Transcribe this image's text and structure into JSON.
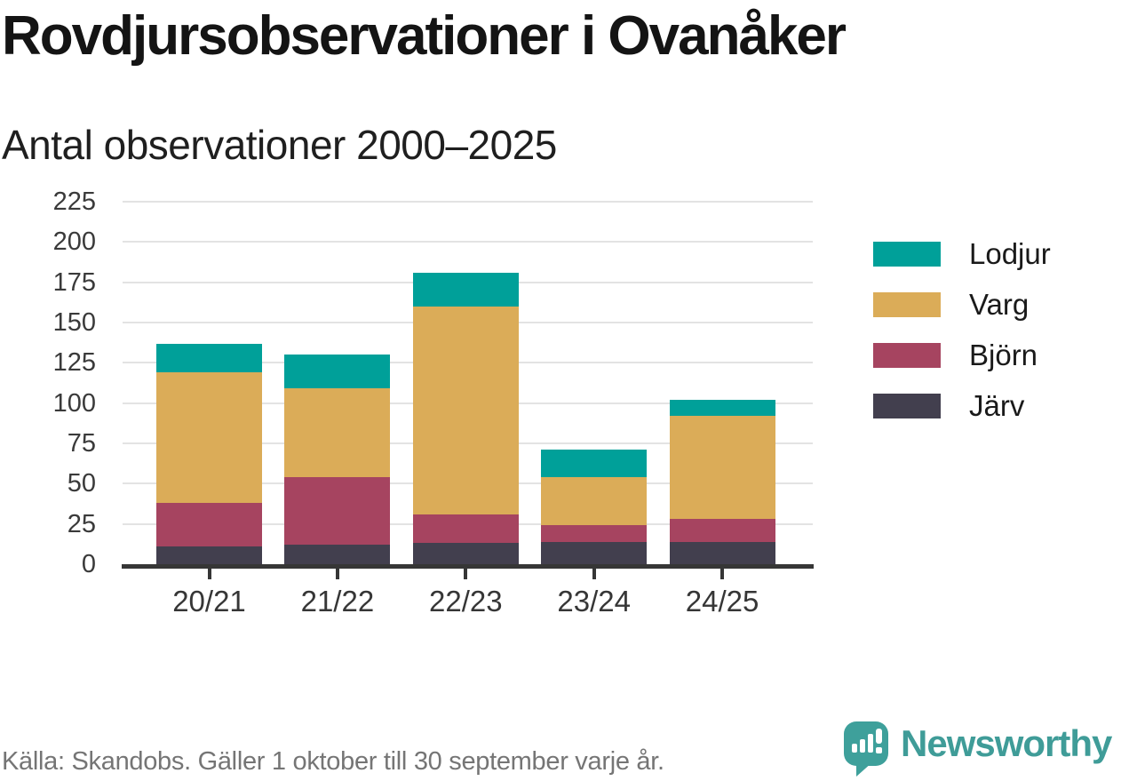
{
  "header": {
    "title": "Rovdjursobservationer i Ovanåker",
    "subtitle": "Antal observationer 2000–2025"
  },
  "chart_data": {
    "type": "bar",
    "stacked": true,
    "title": "Rovdjursobservationer i Ovanåker",
    "subtitle": "Antal observationer 2000–2025",
    "categories": [
      "20/21",
      "21/22",
      "22/23",
      "23/24",
      "24/25"
    ],
    "series": [
      {
        "name": "Järv",
        "color": "#423f4e",
        "values": [
          11,
          12,
          13,
          14,
          14
        ]
      },
      {
        "name": "Björn",
        "color": "#a64460",
        "values": [
          27,
          42,
          18,
          10,
          14
        ]
      },
      {
        "name": "Varg",
        "color": "#dbac58",
        "values": [
          81,
          55,
          129,
          30,
          64
        ]
      },
      {
        "name": "Lodjur",
        "color": "#00a099",
        "values": [
          18,
          21,
          21,
          17,
          10
        ]
      }
    ],
    "stack_order_bottom_to_top": [
      "Järv",
      "Björn",
      "Varg",
      "Lodjur"
    ],
    "legend_order_top_to_bottom": [
      "Lodjur",
      "Varg",
      "Björn",
      "Järv"
    ],
    "totals": [
      137,
      130,
      181,
      71,
      102
    ],
    "xlabel": "",
    "ylabel": "",
    "ylim": [
      0,
      225
    ],
    "yticks": [
      0,
      25,
      50,
      75,
      100,
      125,
      150,
      175,
      200,
      225
    ],
    "grid": true,
    "legend_position": "right"
  },
  "colors": {
    "grid": "#e3e3e3",
    "axis": "#363636",
    "tick_label": "#3a3a3a",
    "footer_text": "#757575",
    "brand_teal": "#3f9c98"
  },
  "footer": {
    "source": "Källa: Skandobs. Gäller 1 oktober till 30 september varje år.",
    "brand": "Newsworthy"
  }
}
